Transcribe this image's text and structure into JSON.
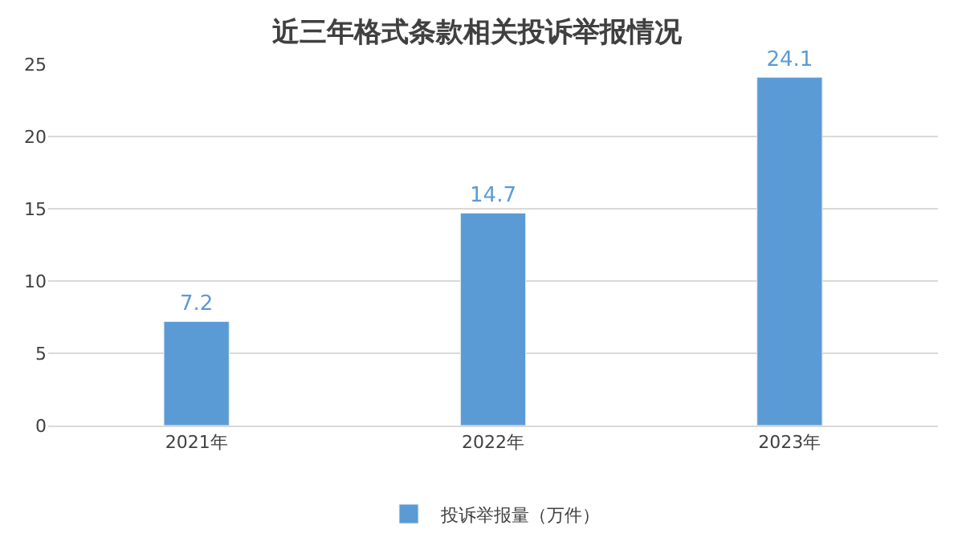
{
  "chart_data": {
    "type": "bar",
    "title": "近三年格式条款相关投诉举报情况",
    "categories": [
      "2021年",
      "2022年",
      "2023年"
    ],
    "series": [
      {
        "name": "投诉举报量（万件）",
        "color": "#5b9bd5",
        "values": [
          7.2,
          14.7,
          24.1
        ]
      }
    ],
    "ylim": [
      0,
      25
    ],
    "yticks": [
      0,
      5,
      10,
      15,
      20,
      25
    ],
    "grid": "y",
    "legend": "bottom",
    "data_labels": true
  }
}
